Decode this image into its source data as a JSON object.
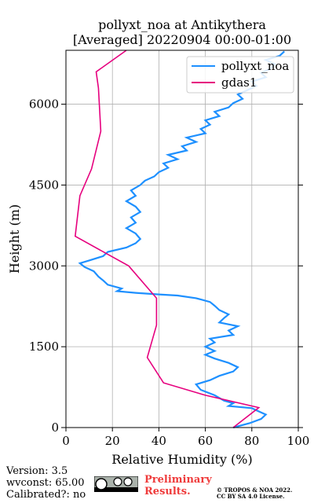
{
  "title": {
    "line1": "pollyxt_noa at Antikythera",
    "line2": "[Averaged] 20220904 00:00-01:00"
  },
  "footer": {
    "version": "Version: 3.5",
    "wvconst": "wvconst:  65.00",
    "calibrated": "Calibrated?: no",
    "preliminary_line1": "Preliminary",
    "preliminary_line2": "Results.",
    "copyright_line1": "© TROPOS & NOA 2022.",
    "copyright_line2": "CC BY SA 4.0 License.",
    "license_badge": "cc-by-sa-badge"
  },
  "colors": {
    "pollyxt_noa": "#1e90ff",
    "gdas1": "#e6007e",
    "grid": "#b0b0b0",
    "preliminary": "#ef3b3b"
  },
  "chart_data": {
    "type": "line",
    "xlabel": "Relative Humidity (%)",
    "ylabel": "Height (m)",
    "xlim": [
      0,
      100
    ],
    "ylim": [
      0,
      7000
    ],
    "xticks": [
      0,
      20,
      40,
      60,
      80,
      100
    ],
    "yticks": [
      0,
      1500,
      3000,
      4500,
      6000
    ],
    "grid": true,
    "legend": "top-right",
    "series": [
      {
        "name": "pollyxt_noa",
        "points": [
          [
            72,
            0
          ],
          [
            79,
            80
          ],
          [
            84,
            160
          ],
          [
            86,
            240
          ],
          [
            82,
            320
          ],
          [
            80,
            360
          ],
          [
            70,
            400
          ],
          [
            72,
            450
          ],
          [
            68,
            500
          ],
          [
            64,
            600
          ],
          [
            58,
            700
          ],
          [
            56,
            800
          ],
          [
            62,
            880
          ],
          [
            66,
            960
          ],
          [
            72,
            1040
          ],
          [
            74,
            1120
          ],
          [
            70,
            1200
          ],
          [
            64,
            1280
          ],
          [
            60,
            1350
          ],
          [
            64,
            1420
          ],
          [
            60,
            1500
          ],
          [
            64,
            1580
          ],
          [
            62,
            1650
          ],
          [
            72,
            1720
          ],
          [
            70,
            1800
          ],
          [
            74,
            1880
          ],
          [
            66,
            1950
          ],
          [
            68,
            2030
          ],
          [
            70,
            2100
          ],
          [
            66,
            2180
          ],
          [
            64,
            2260
          ],
          [
            62,
            2330
          ],
          [
            56,
            2400
          ],
          [
            48,
            2450
          ],
          [
            40,
            2470
          ],
          [
            30,
            2500
          ],
          [
            22,
            2530
          ],
          [
            24,
            2580
          ],
          [
            18,
            2650
          ],
          [
            16,
            2730
          ],
          [
            14,
            2800
          ],
          [
            12,
            2900
          ],
          [
            8,
            2980
          ],
          [
            6,
            3050
          ],
          [
            10,
            3100
          ],
          [
            16,
            3180
          ],
          [
            18,
            3260
          ],
          [
            26,
            3340
          ],
          [
            30,
            3420
          ],
          [
            32,
            3500
          ],
          [
            30,
            3600
          ],
          [
            26,
            3700
          ],
          [
            30,
            3800
          ],
          [
            28,
            3900
          ],
          [
            32,
            4000
          ],
          [
            30,
            4100
          ],
          [
            26,
            4200
          ],
          [
            30,
            4300
          ],
          [
            28,
            4400
          ],
          [
            32,
            4500
          ],
          [
            34,
            4580
          ],
          [
            38,
            4660
          ],
          [
            40,
            4740
          ],
          [
            44,
            4820
          ],
          [
            42,
            4900
          ],
          [
            48,
            4980
          ],
          [
            44,
            5060
          ],
          [
            52,
            5140
          ],
          [
            50,
            5220
          ],
          [
            56,
            5300
          ],
          [
            52,
            5380
          ],
          [
            60,
            5460
          ],
          [
            58,
            5540
          ],
          [
            62,
            5620
          ],
          [
            60,
            5700
          ],
          [
            66,
            5780
          ],
          [
            64,
            5860
          ],
          [
            70,
            5940
          ],
          [
            72,
            6020
          ],
          [
            76,
            6100
          ],
          [
            74,
            6180
          ],
          [
            78,
            6260
          ],
          [
            82,
            6340
          ],
          [
            80,
            6420
          ],
          [
            86,
            6500
          ],
          [
            84,
            6580
          ],
          [
            88,
            6660
          ],
          [
            90,
            6740
          ],
          [
            86,
            6820
          ],
          [
            92,
            6900
          ],
          [
            94,
            6980
          ]
        ]
      },
      {
        "name": "gdas1",
        "points": [
          [
            72,
            0
          ],
          [
            83,
            370
          ],
          [
            60,
            600
          ],
          [
            42,
            830
          ],
          [
            35,
            1300
          ],
          [
            39,
            1900
          ],
          [
            39,
            2400
          ],
          [
            27,
            3000
          ],
          [
            4,
            3550
          ],
          [
            6,
            4300
          ],
          [
            11,
            4800
          ],
          [
            15,
            5500
          ],
          [
            14,
            6300
          ],
          [
            13,
            6600
          ],
          [
            26,
            7000
          ]
        ]
      }
    ]
  }
}
